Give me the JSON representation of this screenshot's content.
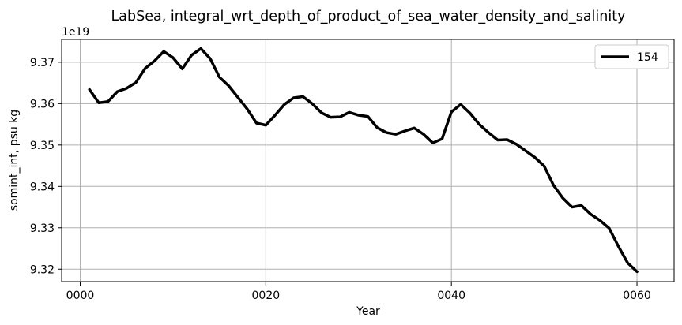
{
  "chart_data": {
    "type": "line",
    "title": "LabSea, integral_wrt_depth_of_product_of_sea_water_density_and_salinity",
    "xlabel": "Year",
    "ylabel": "somint_int, psu kg",
    "y_offset_label": "1e19",
    "y_scale": 1e+19,
    "xlim": [
      -2,
      64
    ],
    "ylim": [
      9.317,
      9.3755
    ],
    "x_ticks": [
      0,
      20,
      40,
      60
    ],
    "x_tick_labels": [
      "0000",
      "0020",
      "0040",
      "0060"
    ],
    "y_ticks": [
      9.32,
      9.33,
      9.34,
      9.35,
      9.36,
      9.37
    ],
    "y_tick_labels": [
      "9.32",
      "9.33",
      "9.34",
      "9.35",
      "9.36",
      "9.37"
    ],
    "grid": true,
    "legend_position": "top-right",
    "series": [
      {
        "name": "154",
        "color": "#000000",
        "x": [
          1,
          2,
          3,
          4,
          5,
          6,
          7,
          8,
          9,
          10,
          11,
          12,
          13,
          14,
          15,
          16,
          17,
          18,
          19,
          20,
          21,
          22,
          23,
          24,
          25,
          26,
          27,
          28,
          29,
          30,
          31,
          32,
          33,
          34,
          35,
          36,
          37,
          38,
          39,
          40,
          41,
          42,
          43,
          44,
          45,
          46,
          47,
          48,
          49,
          50,
          51,
          52,
          53,
          54,
          55,
          56,
          57,
          58,
          59,
          60
        ],
        "y": [
          9.3634,
          9.3602,
          9.3605,
          9.3629,
          9.3637,
          9.3651,
          9.3685,
          9.3703,
          9.3726,
          9.3711,
          9.3684,
          9.3717,
          9.3733,
          9.3709,
          9.3664,
          9.3643,
          9.3615,
          9.3587,
          9.3553,
          9.3548,
          9.3572,
          9.3598,
          9.3614,
          9.3617,
          9.36,
          9.3578,
          9.3567,
          9.3568,
          9.3579,
          9.3572,
          9.3569,
          9.3542,
          9.353,
          9.3526,
          9.3534,
          9.3541,
          9.3526,
          9.3505,
          9.3515,
          9.358,
          9.3598,
          9.3577,
          9.355,
          9.353,
          9.3512,
          9.3513,
          9.3502,
          9.3486,
          9.347,
          9.3449,
          9.3403,
          9.3372,
          9.335,
          9.3354,
          9.3333,
          9.3318,
          9.3299,
          9.3255,
          9.3215,
          9.3194
        ]
      }
    ]
  }
}
